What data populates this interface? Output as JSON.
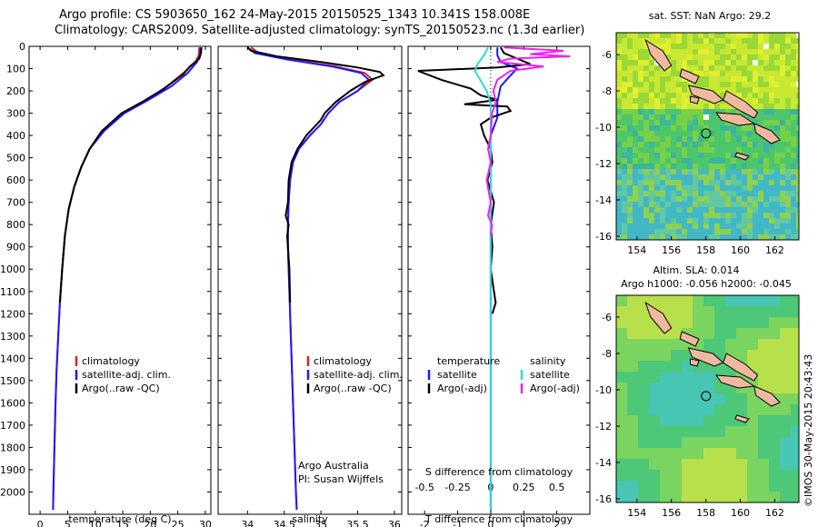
{
  "title_line1": "Argo profile: CS 5903650_162 24-May-2015 20150525_1343 10.341S 158.008E",
  "title_line2": "Climatology: CARS2009. Satellite-adjusted climatology: synTS_20150523.nc (1.3d earlier)",
  "side_label": "©IMOS 30-May-2015 20:43:43",
  "colors": {
    "clim": "#e02020",
    "sat": "#1a1aff",
    "argo": "#000000",
    "sat_sal": "#2fd8d8",
    "argo_sal": "#ee22ee"
  },
  "chart_data": [
    {
      "type": "line",
      "id": "temperature",
      "xlabel": "temperature (deg C)",
      "xlim": [
        -2,
        31
      ],
      "xticks": [
        0,
        5,
        10,
        15,
        20,
        25,
        30
      ],
      "ylim": [
        2100,
        0
      ],
      "yticks": [
        0,
        100,
        200,
        300,
        400,
        500,
        600,
        700,
        800,
        900,
        1000,
        1100,
        1200,
        1300,
        1400,
        1500,
        1600,
        1700,
        1800,
        1900,
        2000
      ],
      "legend": [
        "climatology",
        "satellite-adj. clim.",
        "Argo(..raw -QC)"
      ],
      "series": [
        {
          "name": "climatology",
          "color_key": "clim",
          "points": [
            [
              28.9,
              5
            ],
            [
              28.8,
              40
            ],
            [
              28.2,
              70
            ],
            [
              26,
              120
            ],
            [
              23,
              180
            ],
            [
              19.5,
              240
            ],
            [
              15,
              300
            ],
            [
              11.5,
              380
            ],
            [
              9,
              460
            ],
            [
              7.5,
              540
            ],
            [
              6.2,
              630
            ],
            [
              5.2,
              730
            ],
            [
              4.5,
              850
            ],
            [
              4.0,
              1000
            ],
            [
              3.6,
              1150
            ],
            [
              3.3,
              1300
            ],
            [
              3.0,
              1450
            ],
            [
              2.8,
              1600
            ],
            [
              2.65,
              1750
            ],
            [
              2.5,
              1900
            ],
            [
              2.4,
              2000
            ],
            [
              2.35,
              2080
            ]
          ]
        },
        {
          "name": "satellite-adj. clim.",
          "color_key": "sat",
          "points": [
            [
              29.1,
              5
            ],
            [
              29.0,
              40
            ],
            [
              28.5,
              70
            ],
            [
              26.8,
              120
            ],
            [
              23.8,
              180
            ],
            [
              19.7,
              240
            ],
            [
              15.3,
              300
            ],
            [
              11.6,
              380
            ],
            [
              9.0,
              460
            ],
            [
              7.5,
              540
            ],
            [
              6.2,
              630
            ],
            [
              5.2,
              730
            ],
            [
              4.5,
              850
            ],
            [
              4.0,
              1000
            ],
            [
              3.6,
              1150
            ],
            [
              3.3,
              1300
            ],
            [
              3.0,
              1450
            ],
            [
              2.8,
              1600
            ],
            [
              2.65,
              1750
            ],
            [
              2.5,
              1900
            ],
            [
              2.4,
              2000
            ],
            [
              2.35,
              2080
            ]
          ]
        },
        {
          "name": "Argo(..raw -QC)",
          "color_key": "argo",
          "points": [
            [
              29.3,
              5
            ],
            [
              29.2,
              30
            ],
            [
              28.9,
              55
            ],
            [
              27.2,
              90
            ],
            [
              26.0,
              125
            ],
            [
              22.5,
              190
            ],
            [
              18.5,
              250
            ],
            [
              14.8,
              300
            ],
            [
              11.2,
              380
            ],
            [
              9.0,
              460
            ],
            [
              7.5,
              540
            ],
            [
              6.2,
              630
            ],
            [
              5.2,
              730
            ],
            [
              4.5,
              850
            ],
            [
              4.0,
              1000
            ],
            [
              3.6,
              1150
            ]
          ]
        }
      ]
    },
    {
      "type": "line",
      "id": "salinity",
      "xlabel": "salinity",
      "xlim": [
        33.6,
        36.1
      ],
      "xticks": [
        34,
        34.5,
        35,
        35.5,
        36
      ],
      "ylim": [
        2100,
        0
      ],
      "legend": [
        "climatology",
        "satellite-adj. clim.",
        "Argo(..raw -QC)"
      ],
      "credit_line1": "Argo Australia",
      "credit_line2": "PI: Susan Wijffels",
      "series": [
        {
          "name": "climatology",
          "color_key": "clim",
          "points": [
            [
              34.05,
              5
            ],
            [
              34.15,
              30
            ],
            [
              34.6,
              60
            ],
            [
              35.2,
              90
            ],
            [
              35.6,
              120
            ],
            [
              35.7,
              150
            ],
            [
              35.5,
              200
            ],
            [
              35.25,
              250
            ],
            [
              35.1,
              300
            ],
            [
              35.0,
              350
            ],
            [
              34.85,
              400
            ],
            [
              34.7,
              460
            ],
            [
              34.62,
              520
            ],
            [
              34.58,
              600
            ],
            [
              34.56,
              700
            ],
            [
              34.55,
              800
            ],
            [
              34.55,
              900
            ],
            [
              34.56,
              1000
            ],
            [
              34.58,
              1200
            ],
            [
              34.6,
              1400
            ],
            [
              34.62,
              1600
            ],
            [
              34.64,
              1800
            ],
            [
              34.66,
              2000
            ],
            [
              34.67,
              2080
            ]
          ]
        },
        {
          "name": "satellite-adj. clim.",
          "color_key": "sat",
          "points": [
            [
              34.0,
              5
            ],
            [
              34.1,
              30
            ],
            [
              34.55,
              60
            ],
            [
              35.15,
              90
            ],
            [
              35.55,
              120
            ],
            [
              35.65,
              150
            ],
            [
              35.5,
              200
            ],
            [
              35.25,
              250
            ],
            [
              35.1,
              300
            ],
            [
              35.0,
              350
            ],
            [
              34.85,
              400
            ],
            [
              34.7,
              460
            ],
            [
              34.62,
              520
            ],
            [
              34.58,
              600
            ],
            [
              34.56,
              700
            ],
            [
              34.55,
              800
            ],
            [
              34.55,
              900
            ],
            [
              34.56,
              1000
            ],
            [
              34.58,
              1200
            ],
            [
              34.6,
              1400
            ],
            [
              34.62,
              1600
            ],
            [
              34.64,
              1800
            ],
            [
              34.66,
              2000
            ],
            [
              34.67,
              2080
            ]
          ]
        },
        {
          "name": "Argo(..raw -QC)",
          "color_key": "argo",
          "points": [
            [
              34.0,
              5
            ],
            [
              34.05,
              20
            ],
            [
              34.4,
              45
            ],
            [
              35.0,
              70
            ],
            [
              35.5,
              95
            ],
            [
              35.8,
              115
            ],
            [
              35.85,
              130
            ],
            [
              35.6,
              160
            ],
            [
              35.4,
              200
            ],
            [
              35.2,
              250
            ],
            [
              35.05,
              300
            ],
            [
              35.0,
              330
            ],
            [
              34.8,
              400
            ],
            [
              34.68,
              460
            ],
            [
              34.6,
              520
            ],
            [
              34.56,
              600
            ],
            [
              34.55,
              700
            ],
            [
              34.52,
              760
            ],
            [
              34.56,
              800
            ],
            [
              34.54,
              850
            ],
            [
              34.57,
              1000
            ],
            [
              34.58,
              1150
            ]
          ]
        }
      ]
    },
    {
      "type": "line",
      "id": "difference",
      "xlabel": "T difference from climatology",
      "x2label": "S difference from climatology",
      "xlim": [
        -2.5,
        3
      ],
      "xticks": [
        -2,
        -1,
        0,
        1,
        2
      ],
      "x2ticks": [
        {
          "v": -0.5,
          "label": "-0.5"
        },
        {
          "v": -0.25,
          "label": "-0.25"
        },
        {
          "v": 0,
          "label": "0"
        },
        {
          "v": 0.25,
          "label": "0.25"
        },
        {
          "v": 0.5,
          "label": "0.5"
        }
      ],
      "x2scale": 4,
      "ylim": [
        2100,
        0
      ],
      "legend_t_header": "temperature",
      "legend_s_header": "salinity",
      "legend_t": [
        "satellite",
        "Argo(-adj)"
      ],
      "legend_s": [
        "satellite",
        "Argo(-adj)"
      ],
      "series": [
        {
          "name": "T satellite",
          "color_key": "sat",
          "points": [
            [
              0.2,
              5
            ],
            [
              0.2,
              40
            ],
            [
              0.3,
              70
            ],
            [
              0.8,
              100
            ],
            [
              0.6,
              130
            ],
            [
              0.3,
              180
            ],
            [
              0.2,
              250
            ],
            [
              0.2,
              320
            ],
            [
              0,
              400
            ],
            [
              0,
              600
            ],
            [
              0,
              1000
            ],
            [
              0,
              1500
            ],
            [
              0,
              2080
            ]
          ]
        },
        {
          "name": "T Argo(-adj)",
          "color_key": "argo",
          "points": [
            [
              0.3,
              5
            ],
            [
              0.4,
              30
            ],
            [
              0.8,
              55
            ],
            [
              1.2,
              80
            ],
            [
              0.2,
              95
            ],
            [
              -2.2,
              110
            ],
            [
              -1.5,
              150
            ],
            [
              -0.6,
              190
            ],
            [
              -0.3,
              220
            ],
            [
              0.2,
              240
            ],
            [
              -0.8,
              260
            ],
            [
              0.5,
              270
            ],
            [
              0.6,
              290
            ],
            [
              0,
              320
            ],
            [
              -0.3,
              350
            ],
            [
              -0.2,
              400
            ],
            [
              0,
              460
            ],
            [
              0.05,
              520
            ],
            [
              -0.1,
              600
            ],
            [
              0.1,
              700
            ],
            [
              0,
              800
            ],
            [
              0.05,
              900
            ],
            [
              0,
              1000
            ],
            [
              0.1,
              1100
            ],
            [
              0.15,
              1150
            ],
            [
              0.05,
              1200
            ]
          ]
        },
        {
          "name": "S satellite",
          "color_key": "sat_sal",
          "points": [
            [
              -0.02,
              5
            ],
            [
              -0.05,
              40
            ],
            [
              -0.1,
              80
            ],
            [
              -0.12,
              110
            ],
            [
              -0.08,
              150
            ],
            [
              -0.03,
              200
            ],
            [
              0,
              260
            ],
            [
              0,
              350
            ],
            [
              0,
              500
            ],
            [
              0,
              1000
            ],
            [
              0,
              2080
            ]
          ]
        },
        {
          "name": "S Argo(-adj)",
          "color_key": "argo_sal",
          "points": [
            [
              0.1,
              5
            ],
            [
              0.55,
              20
            ],
            [
              0.3,
              35
            ],
            [
              0.6,
              45
            ],
            [
              0.15,
              55
            ],
            [
              0.05,
              70
            ],
            [
              0.4,
              90
            ],
            [
              0.15,
              110
            ],
            [
              0.05,
              150
            ],
            [
              0.02,
              200
            ],
            [
              0.04,
              250
            ],
            [
              0.01,
              300
            ],
            [
              0,
              400
            ],
            [
              -0.02,
              460
            ],
            [
              0,
              520
            ],
            [
              -0.03,
              600
            ],
            [
              0,
              700
            ],
            [
              -0.02,
              760
            ],
            [
              0.01,
              800
            ],
            [
              0,
              850
            ]
          ]
        }
      ]
    }
  ],
  "maps": {
    "sst": {
      "title": "sat. SST: NaN Argo: 29.2",
      "yticks": [
        -6,
        -8,
        -10,
        -12,
        -14,
        -16
      ],
      "xticks": [
        154,
        156,
        158,
        160,
        162
      ],
      "xlim": [
        152.8,
        163.4
      ],
      "ylim": [
        -16.2,
        -4.8
      ],
      "float_lon": 158.008,
      "float_lat": -10.341
    },
    "sla": {
      "title1": "Altim. SLA: 0.014",
      "title2": "Argo h1000: -0.056 h2000: -0.045",
      "yticks": [
        -6,
        -8,
        -10,
        -12,
        -14,
        -16
      ],
      "xticks": [
        154,
        156,
        158,
        160,
        162
      ],
      "xlim": [
        152.8,
        163.4
      ],
      "ylim": [
        -16.2,
        -4.8
      ],
      "float_lon": 158.008,
      "float_lat": -10.341
    }
  }
}
